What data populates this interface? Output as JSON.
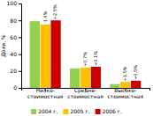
{
  "chart_data": {
    "type": "bar",
    "categories": [
      "Низко-\nстоимостная",
      "Средне-\nстоимостная",
      "Высоко-\nстоимостная"
    ],
    "series": [
      {
        "name": "2004 г.",
        "color": "#92d050",
        "values": [
          79.0,
          23.0,
          4.5
        ]
      },
      {
        "name": "2005 г.",
        "color": "#ffc000",
        "values": [
          75.0,
          24.0,
          7.0
        ],
        "annotations": [
          "-1.4%",
          "+0.7%",
          "+1.5%"
        ]
      },
      {
        "name": "2006 г.",
        "color": "#cc0000",
        "values": [
          80.0,
          25.0,
          8.5
        ],
        "annotations": [
          "+2.5%",
          "+0.1%",
          "+0.5%"
        ]
      }
    ],
    "ylabel": "Доля, %",
    "ylim": [
      0,
      100
    ],
    "yticks": [
      0,
      20,
      40,
      60,
      80,
      100
    ],
    "grid": false,
    "legend": "bottom"
  }
}
